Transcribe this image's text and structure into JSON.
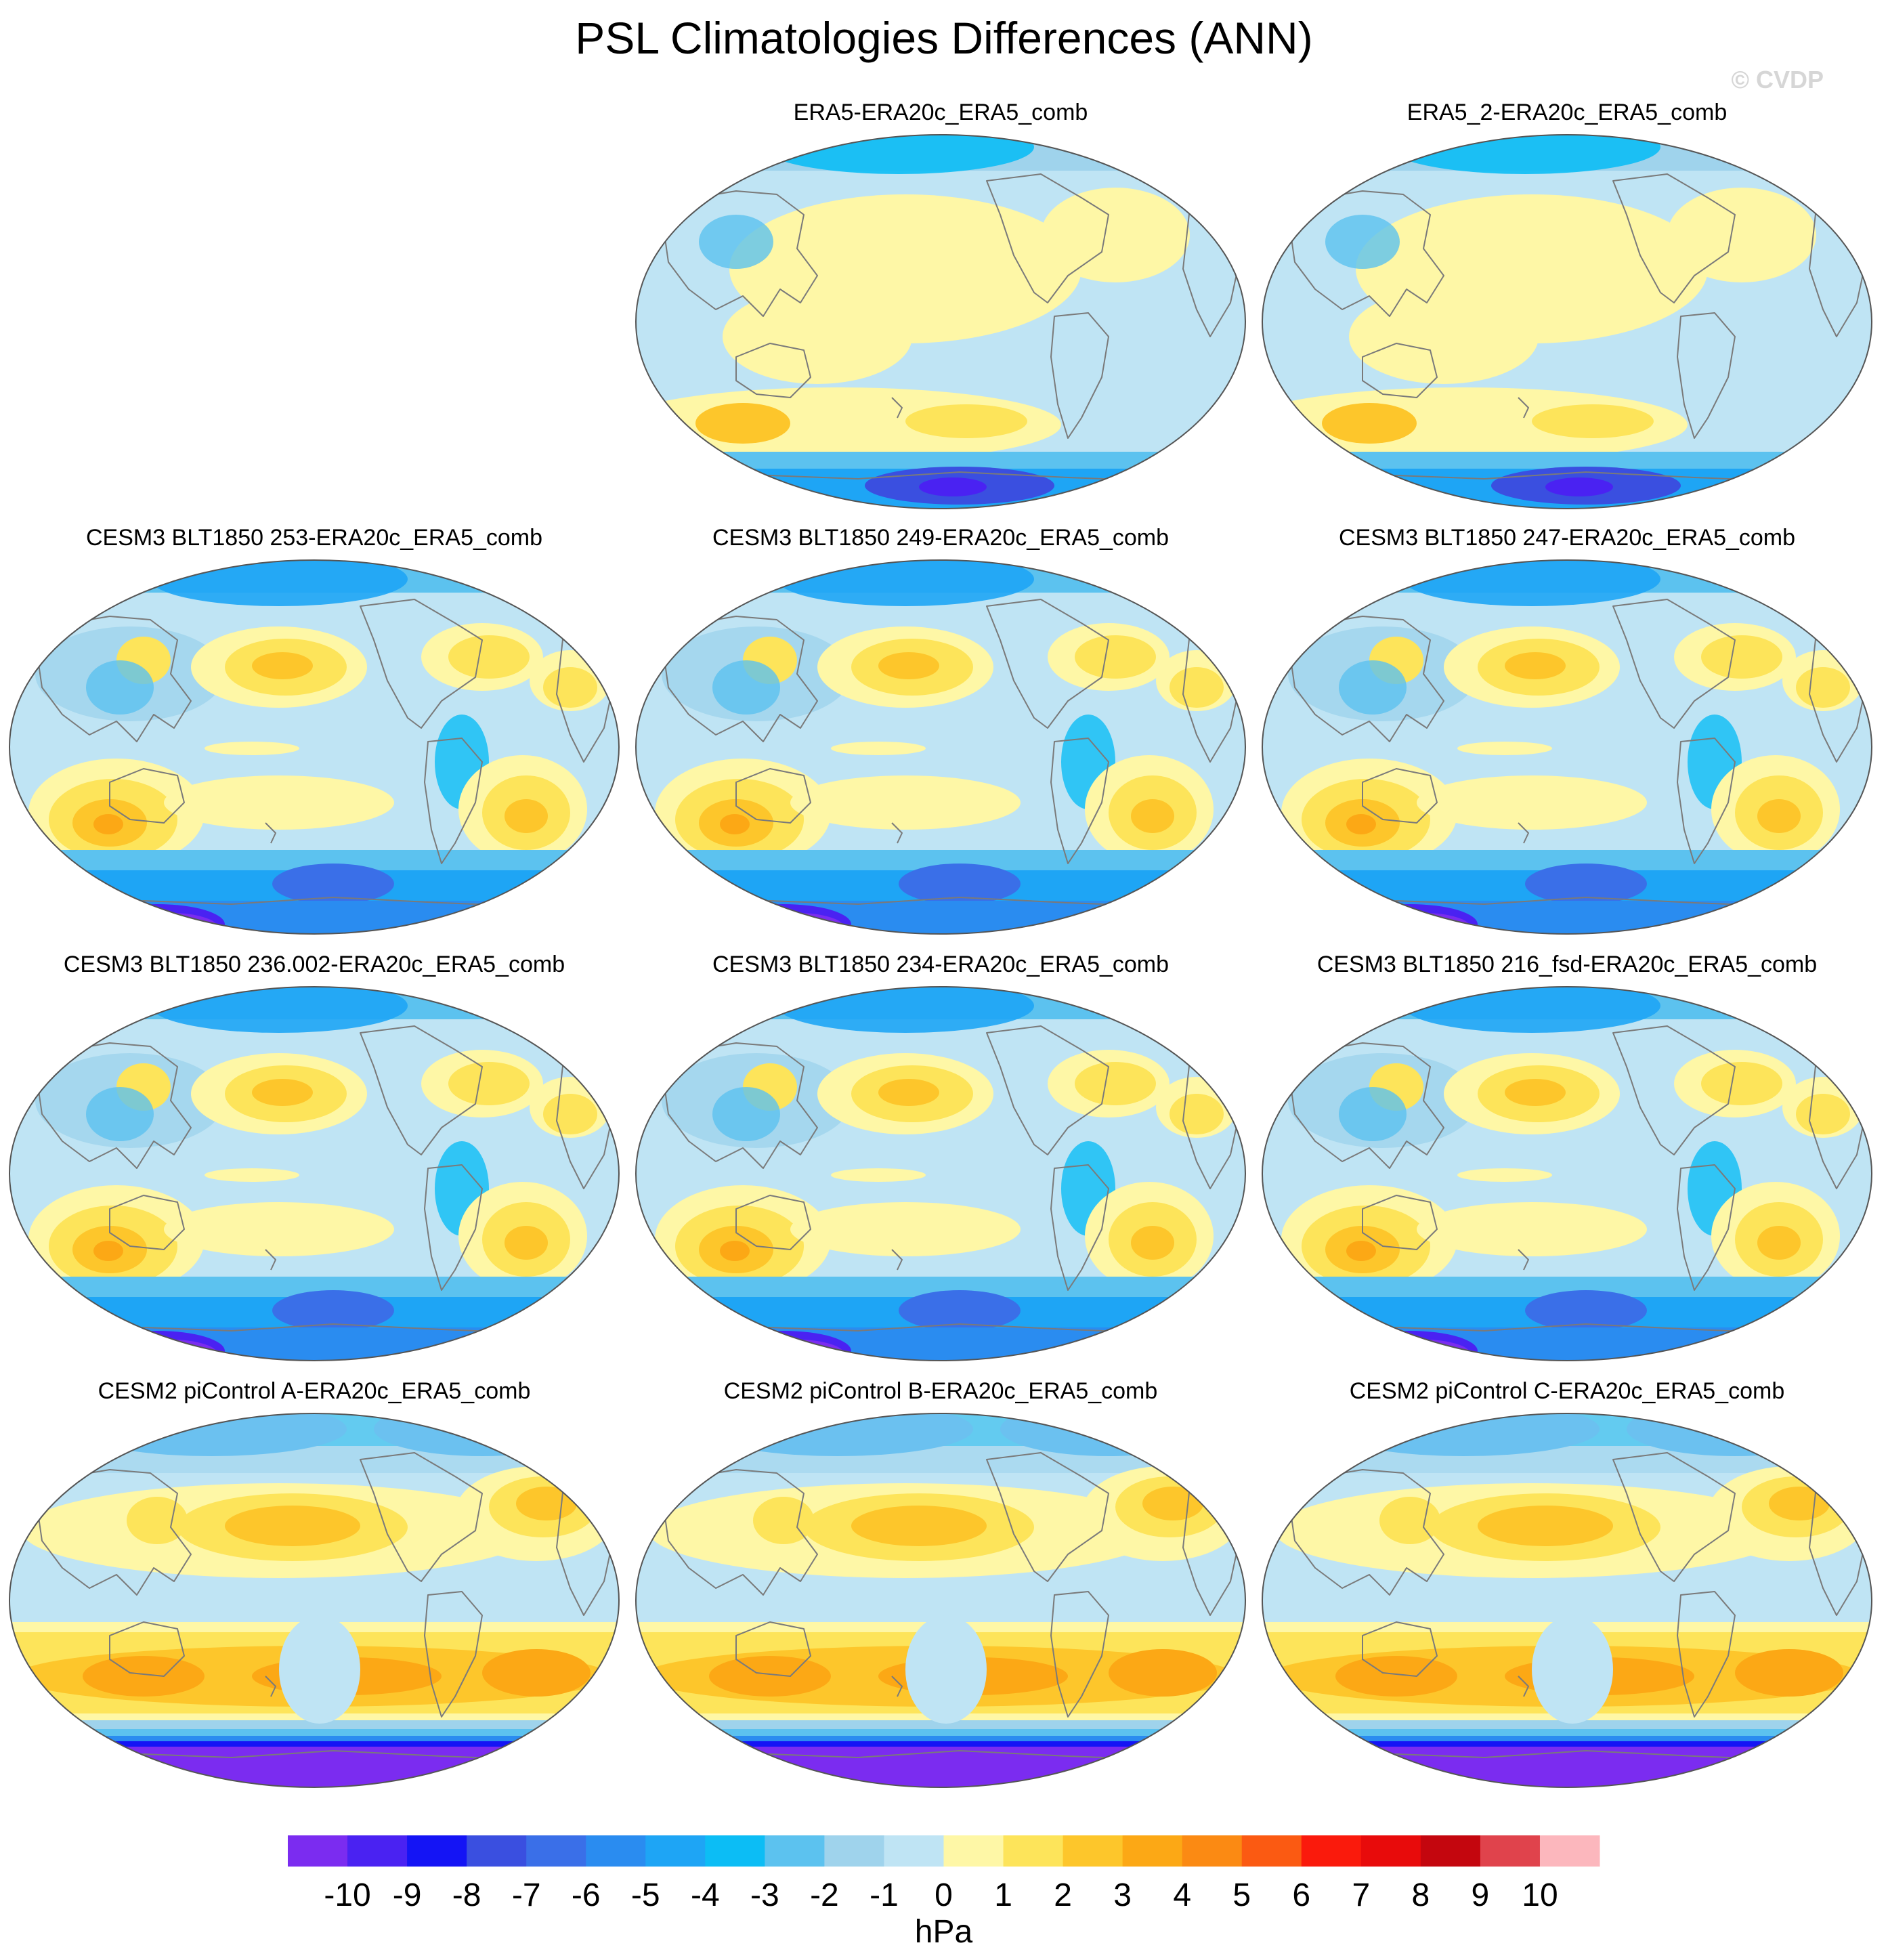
{
  "figure": {
    "title": "PSL Climatologies Differences (ANN)",
    "copyright": "© CVDP"
  },
  "chart_data": {
    "type": "heatmap",
    "title": "PSL Climatologies Differences (ANN)",
    "panels": [
      {
        "title": "ERA5-ERA20c_ERA5_comb",
        "style": "reanalysis"
      },
      {
        "title": "ERA5_2-ERA20c_ERA5_comb",
        "style": "reanalysis"
      },
      {
        "title": "CESM3 BLT1850 253-ERA20c_ERA5_comb",
        "style": "cesm3"
      },
      {
        "title": "CESM3 BLT1850 249-ERA20c_ERA5_comb",
        "style": "cesm3"
      },
      {
        "title": "CESM3 BLT1850 247-ERA20c_ERA5_comb",
        "style": "cesm3"
      },
      {
        "title": "CESM3 BLT1850 236.002-ERA20c_ERA5_comb",
        "style": "cesm3"
      },
      {
        "title": "CESM3 BLT1850 234-ERA20c_ERA5_comb",
        "style": "cesm3"
      },
      {
        "title": "CESM3 BLT1850 216_fsd-ERA20c_ERA5_comb",
        "style": "cesm3"
      },
      {
        "title": "CESM2 piControl A-ERA20c_ERA5_comb",
        "style": "cesm2"
      },
      {
        "title": "CESM2 piControl B-ERA20c_ERA5_comb",
        "style": "cesm2"
      },
      {
        "title": "CESM2 piControl C-ERA20c_ERA5_comb",
        "style": "cesm2"
      }
    ],
    "colorbar": {
      "unit": "hPa",
      "levels": [
        -10,
        -9,
        -8,
        -7,
        -6,
        -5,
        -4,
        -3,
        -2,
        -1,
        0,
        1,
        2,
        3,
        4,
        5,
        6,
        7,
        8,
        9,
        10
      ],
      "tick_labels": [
        "-10",
        "-9",
        "-8",
        "-7",
        "-6",
        "-5",
        "-4",
        "-3",
        "-2",
        "-1",
        "0",
        "1",
        "2",
        "3",
        "4",
        "5",
        "6",
        "7",
        "8",
        "9",
        "10"
      ],
      "colors": [
        "#7b2cf0",
        "#4a22f2",
        "#1414f5",
        "#3a4fe0",
        "#3a6fe8",
        "#2a8cf0",
        "#1ea5f5",
        "#0cbdf5",
        "#5cc2ef",
        "#9fd3ec",
        "#bfe4f4",
        "#fef7a6",
        "#fde45a",
        "#fdc62b",
        "#fca815",
        "#fb8a13",
        "#fb5a12",
        "#fa1a0c",
        "#e80b0b",
        "#c4060e",
        "#e0434c",
        "#fcb7bd"
      ]
    }
  }
}
